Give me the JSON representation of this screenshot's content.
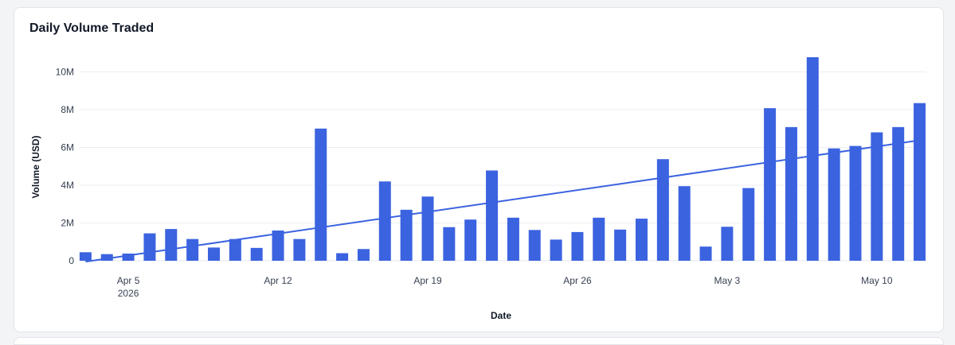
{
  "card": {
    "title": "Daily Volume Traded"
  },
  "chart_data": {
    "type": "bar",
    "title": "Daily Volume Traded",
    "xlabel": "Date",
    "ylabel": "Volume (USD)",
    "ylim": [
      0,
      10800000
    ],
    "yticks": [
      {
        "value": 0,
        "label": "0"
      },
      {
        "value": 2000000,
        "label": "2M"
      },
      {
        "value": 4000000,
        "label": "4M"
      },
      {
        "value": 6000000,
        "label": "6M"
      },
      {
        "value": 8000000,
        "label": "8M"
      },
      {
        "value": 10000000,
        "label": "10M"
      }
    ],
    "xticks": [
      {
        "date": "2026-04-05",
        "label": "Apr 5",
        "sublabel": "2026"
      },
      {
        "date": "2026-04-12",
        "label": "Apr 12",
        "sublabel": ""
      },
      {
        "date": "2026-04-19",
        "label": "Apr 19",
        "sublabel": ""
      },
      {
        "date": "2026-04-26",
        "label": "Apr 26",
        "sublabel": ""
      },
      {
        "date": "2026-05-03",
        "label": "May 3",
        "sublabel": ""
      },
      {
        "date": "2026-05-10",
        "label": "May 10",
        "sublabel": ""
      }
    ],
    "grid": true,
    "series": [
      {
        "type": "bar",
        "color": "#3b63e0",
        "points": [
          {
            "date": "2026-04-03",
            "value": 450000
          },
          {
            "date": "2026-04-04",
            "value": 350000
          },
          {
            "date": "2026-04-05",
            "value": 380000
          },
          {
            "date": "2026-04-06",
            "value": 1450000
          },
          {
            "date": "2026-04-07",
            "value": 1680000
          },
          {
            "date": "2026-04-08",
            "value": 1150000
          },
          {
            "date": "2026-04-09",
            "value": 700000
          },
          {
            "date": "2026-04-10",
            "value": 1150000
          },
          {
            "date": "2026-04-11",
            "value": 680000
          },
          {
            "date": "2026-04-12",
            "value": 1600000
          },
          {
            "date": "2026-04-13",
            "value": 1150000
          },
          {
            "date": "2026-04-14",
            "value": 7000000
          },
          {
            "date": "2026-04-15",
            "value": 400000
          },
          {
            "date": "2026-04-16",
            "value": 620000
          },
          {
            "date": "2026-04-17",
            "value": 4200000
          },
          {
            "date": "2026-04-18",
            "value": 2700000
          },
          {
            "date": "2026-04-19",
            "value": 3400000
          },
          {
            "date": "2026-04-20",
            "value": 1780000
          },
          {
            "date": "2026-04-21",
            "value": 2180000
          },
          {
            "date": "2026-04-22",
            "value": 4780000
          },
          {
            "date": "2026-04-23",
            "value": 2280000
          },
          {
            "date": "2026-04-24",
            "value": 1630000
          },
          {
            "date": "2026-04-25",
            "value": 1120000
          },
          {
            "date": "2026-04-26",
            "value": 1520000
          },
          {
            "date": "2026-04-27",
            "value": 2280000
          },
          {
            "date": "2026-04-28",
            "value": 1650000
          },
          {
            "date": "2026-04-29",
            "value": 2230000
          },
          {
            "date": "2026-04-30",
            "value": 5380000
          },
          {
            "date": "2026-05-01",
            "value": 3950000
          },
          {
            "date": "2026-05-02",
            "value": 750000
          },
          {
            "date": "2026-05-03",
            "value": 1800000
          },
          {
            "date": "2026-05-04",
            "value": 3850000
          },
          {
            "date": "2026-05-05",
            "value": 8080000
          },
          {
            "date": "2026-05-06",
            "value": 7080000
          },
          {
            "date": "2026-05-07",
            "value": 10780000
          },
          {
            "date": "2026-05-08",
            "value": 5950000
          },
          {
            "date": "2026-05-09",
            "value": 6080000
          },
          {
            "date": "2026-05-10",
            "value": 6800000
          },
          {
            "date": "2026-05-11",
            "value": 7080000
          },
          {
            "date": "2026-05-12",
            "value": 8350000
          }
        ]
      },
      {
        "type": "trendline",
        "color": "#3b63e0",
        "points": [
          {
            "date": "2026-04-03",
            "value": -50000
          },
          {
            "date": "2026-05-12",
            "value": 6380000
          }
        ]
      }
    ]
  }
}
